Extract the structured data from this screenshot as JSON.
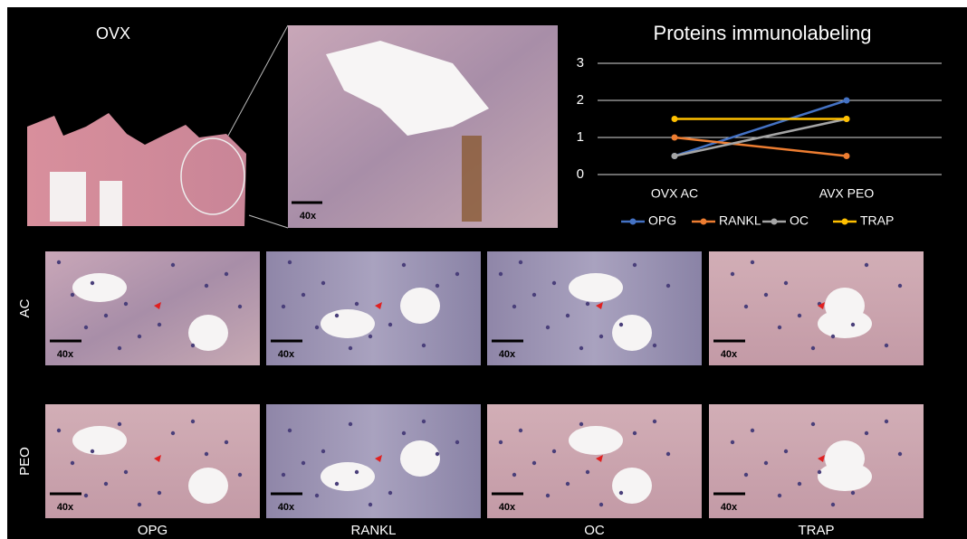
{
  "chart_data": {
    "type": "line",
    "title": "Proteins immunolabeling",
    "categories": [
      "OVX AC",
      "AVX PEO"
    ],
    "series": [
      {
        "name": "OPG",
        "color": "#4472c4",
        "values": [
          0.5,
          2
        ]
      },
      {
        "name": "RANKL",
        "color": "#ed7d31",
        "values": [
          1,
          0.5
        ]
      },
      {
        "name": "OC",
        "color": "#a5a5a5",
        "values": [
          0.5,
          1.5
        ]
      },
      {
        "name": "TRAP",
        "color": "#ffc000",
        "values": [
          1.5,
          1.5
        ]
      }
    ],
    "ylim": [
      0,
      3
    ],
    "yticks": [
      0,
      1,
      2,
      3
    ],
    "grid": true,
    "legend": "bottom"
  },
  "figure": {
    "overview_label": "OVX",
    "zoom_scale": "40x",
    "rows": [
      {
        "label": "AC",
        "scales": [
          "40x",
          "40x",
          "40x",
          "40x"
        ]
      },
      {
        "label": "PEO",
        "scales": [
          "40x",
          "40x",
          "40x",
          "40x"
        ]
      }
    ],
    "columns": [
      "OPG",
      "RANKL",
      "OC",
      "TRAP"
    ]
  }
}
